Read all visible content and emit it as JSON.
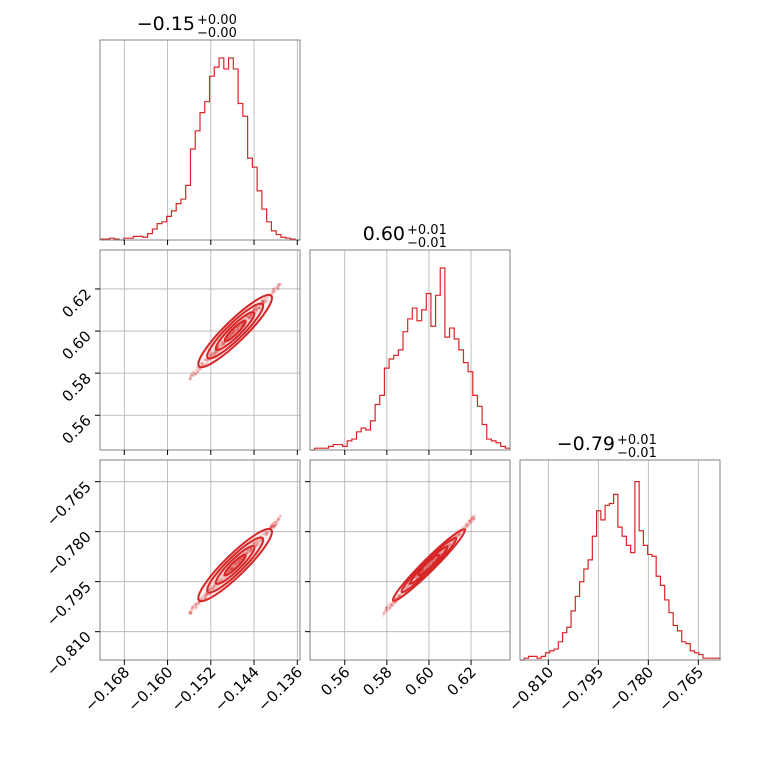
{
  "chart_data": {
    "type": "corner",
    "color": "#d62728",
    "grid": true,
    "parameters": [
      {
        "title": {
          "value": "−0.15",
          "upper": "+0.00",
          "lower": "−0.00"
        },
        "median": -0.1475,
        "range": [
          -0.1725,
          -0.1355
        ],
        "ticks": [
          -0.168,
          -0.16,
          -0.152,
          -0.144,
          -0.136
        ],
        "tick_labels": [
          "−0.168",
          "−0.160",
          "−0.152",
          "−0.144",
          "−0.136"
        ]
      },
      {
        "title": {
          "value": "0.60",
          "upper": "+0.01",
          "lower": "−0.01"
        },
        "median": 0.6,
        "range": [
          0.5435,
          0.6385
        ],
        "ticks": [
          0.56,
          0.58,
          0.6,
          0.62
        ],
        "tick_labels": [
          "0.56",
          "0.58",
          "0.60",
          "0.62"
        ]
      },
      {
        "title": {
          "value": "−0.79",
          "upper": "+0.01",
          "lower": "−0.01"
        },
        "median": -0.79,
        "range": [
          -0.8185,
          -0.7585
        ],
        "ticks": [
          -0.81,
          -0.795,
          -0.78,
          -0.765
        ],
        "tick_labels": [
          "−0.810",
          "−0.795",
          "−0.780",
          "−0.765"
        ]
      }
    ],
    "histograms": [
      [
        0.005,
        0.005,
        0.01,
        0.005,
        0.0,
        0.01,
        0.01,
        0.02,
        0.02,
        0.015,
        0.035,
        0.06,
        0.09,
        0.1,
        0.13,
        0.16,
        0.2,
        0.225,
        0.3,
        0.5,
        0.6,
        0.7,
        0.76,
        0.9,
        0.95,
        1.0,
        0.94,
        1.0,
        0.94,
        0.75,
        0.68,
        0.45,
        0.4,
        0.27,
        0.17,
        0.1,
        0.05,
        0.03,
        0.015,
        0.01,
        0.005,
        0.0
      ],
      [
        0.0,
        0.01,
        0.01,
        0.01,
        0.02,
        0.03,
        0.03,
        0.02,
        0.05,
        0.06,
        0.1,
        0.12,
        0.11,
        0.16,
        0.25,
        0.3,
        0.45,
        0.5,
        0.52,
        0.55,
        0.65,
        0.72,
        0.78,
        0.71,
        0.77,
        0.86,
        0.68,
        0.85,
        1.0,
        0.62,
        0.67,
        0.61,
        0.55,
        0.48,
        0.43,
        0.3,
        0.24,
        0.14,
        0.06,
        0.05,
        0.04,
        0.02,
        0.01
      ],
      [
        0.0,
        0.01,
        0.02,
        0.02,
        0.01,
        0.02,
        0.04,
        0.05,
        0.06,
        0.1,
        0.15,
        0.18,
        0.27,
        0.35,
        0.43,
        0.5,
        0.55,
        0.68,
        0.82,
        0.77,
        0.85,
        0.86,
        0.91,
        0.73,
        0.68,
        0.63,
        0.59,
        0.98,
        0.71,
        0.63,
        0.58,
        0.57,
        0.46,
        0.41,
        0.33,
        0.26,
        0.19,
        0.16,
        0.1,
        0.09,
        0.05,
        0.04,
        0.03,
        0.01,
        0.01,
        0.01,
        0.01
      ]
    ],
    "correlations": {
      "1-0": 0.98,
      "2-0": 0.98,
      "2-1": 0.995
    }
  }
}
